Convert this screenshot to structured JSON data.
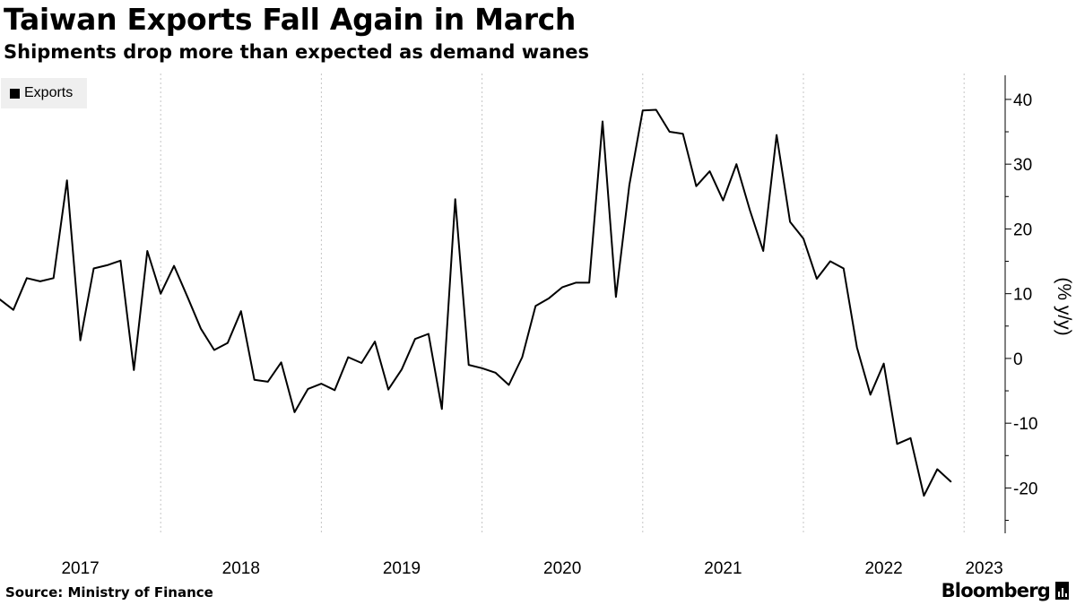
{
  "chart_data": {
    "type": "line",
    "title": "Taiwan Exports Fall Again in March",
    "subtitle": "Shipments drop more than expected as demand wanes",
    "ylabel": "(% y/y)",
    "ylim": [
      -27,
      44
    ],
    "yticks": [
      -20,
      -10,
      0,
      10,
      20,
      30,
      40
    ],
    "xlim": [
      2017.0,
      2023.25
    ],
    "xticks": [
      2017,
      2018,
      2019,
      2020,
      2021,
      2022,
      2023
    ],
    "xtick_labels": [
      "2017",
      "2018",
      "2019",
      "2020",
      "2021",
      "2022",
      "2023"
    ],
    "legend": "top-left",
    "grid": "vertical dotted",
    "series": [
      {
        "name": "Exports",
        "color": "#000000",
        "start": "2017-01",
        "values": [
          9.1,
          7.5,
          12.4,
          11.9,
          12.4,
          27.5,
          2.8,
          13.9,
          14.4,
          15.1,
          -1.8,
          16.6,
          10.0,
          14.3,
          9.5,
          4.6,
          1.3,
          2.4,
          7.3,
          -3.3,
          -3.6,
          -0.6,
          -8.3,
          -4.7,
          -3.9,
          -4.9,
          0.2,
          -0.7,
          2.6,
          -4.8,
          -1.7,
          3.0,
          3.8,
          -7.8,
          24.6,
          -1.0,
          -1.5,
          -2.2,
          -4.1,
          0.2,
          8.1,
          9.3,
          11.0,
          11.7,
          11.7,
          36.6,
          9.5,
          26.8,
          38.3,
          38.4,
          35.0,
          34.7,
          26.6,
          28.9,
          24.4,
          30.0,
          22.9,
          16.6,
          34.5,
          21.1,
          18.5,
          12.3,
          15.0,
          13.9,
          1.7,
          -5.6,
          -0.8,
          -13.2,
          -12.3,
          -21.2,
          -17.1,
          -19.0
        ]
      }
    ]
  },
  "legend": {
    "label": "Exports"
  },
  "source": "Source:  Ministry of Finance",
  "brand": "Bloomberg"
}
